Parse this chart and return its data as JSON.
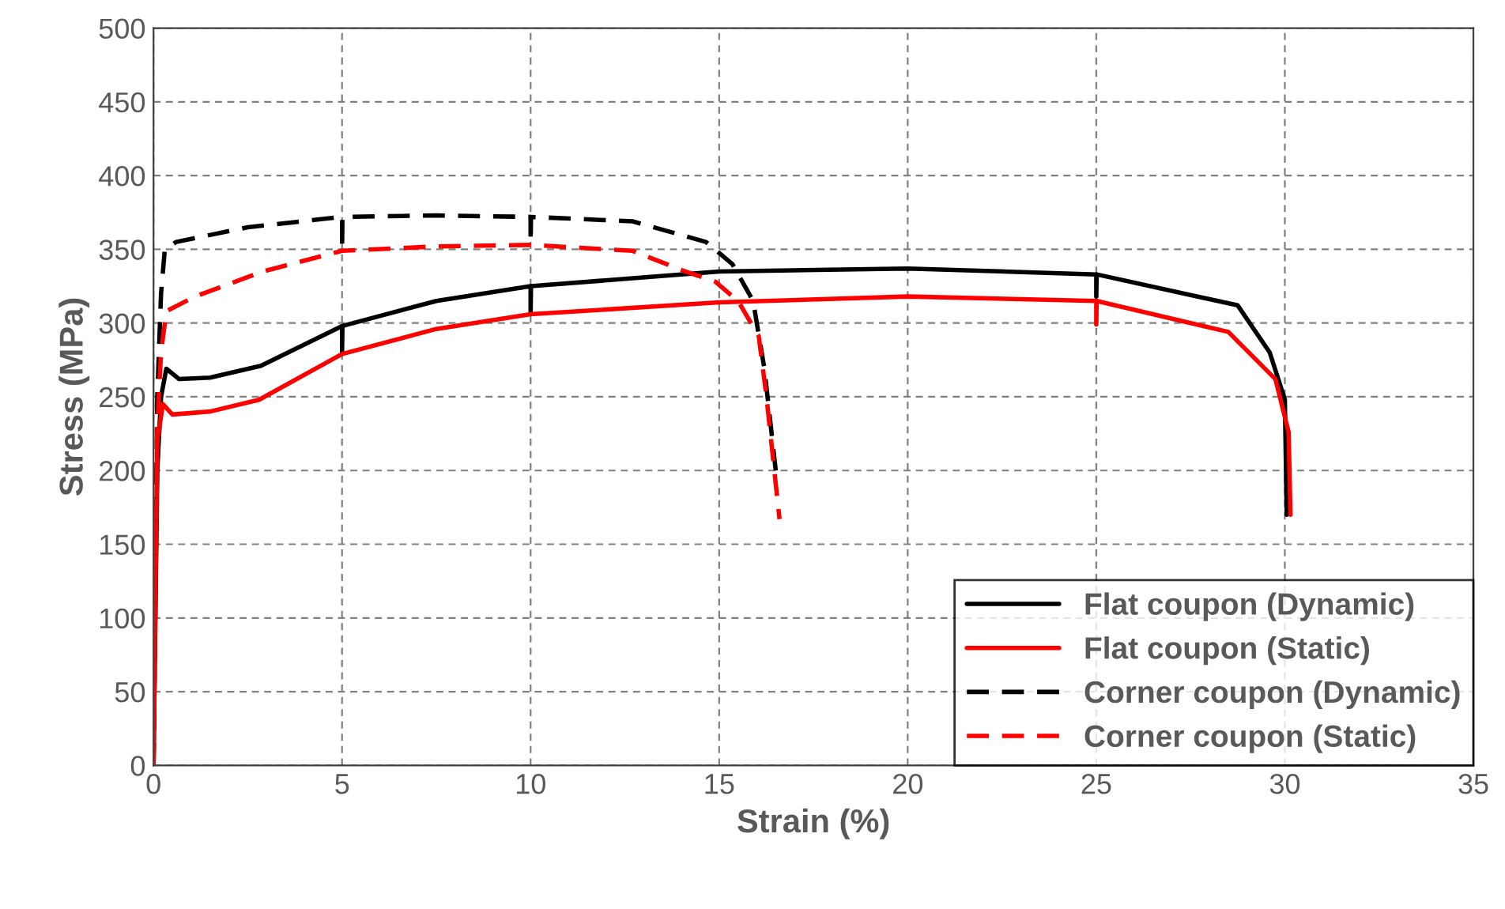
{
  "chart_data": {
    "type": "line",
    "xlabel": "Strain (%)",
    "ylabel": "Stress (MPa)",
    "xlim": [
      0,
      35
    ],
    "ylim": [
      0,
      500
    ],
    "xticks": [
      0,
      5,
      10,
      15,
      20,
      25,
      30,
      35
    ],
    "yticks": [
      0,
      50,
      100,
      150,
      200,
      250,
      300,
      350,
      400,
      450,
      500
    ],
    "grid": true,
    "legend": "bottom right",
    "marker": "none",
    "series": [
      {
        "name": "Flat coupon (Dynamic)",
        "color": "#000000",
        "line_style": "solid",
        "x": [
          0,
          0.1,
          0.2,
          0.34,
          0.68,
          1.5,
          2.85,
          5.0,
          5.0,
          5.01,
          7.5,
          10.0,
          10.0,
          10.01,
          15,
          20,
          25,
          25,
          25.01,
          28.75,
          29.6,
          30.0,
          30.05
        ],
        "values": [
          0,
          200,
          250,
          269,
          262,
          263,
          271,
          298,
          280,
          298,
          315,
          325,
          307,
          325,
          335,
          337,
          333,
          318,
          333,
          312,
          280,
          248,
          170
        ]
      },
      {
        "name": "Flat coupon (Static)",
        "color": "#ff0000",
        "line_style": "solid",
        "x": [
          0,
          0.1,
          0.25,
          0.5,
          1.5,
          2.8,
          5,
          7.5,
          10,
          15,
          20,
          25,
          25,
          25.01,
          28.5,
          29.75,
          30.1,
          30.15
        ],
        "values": [
          0,
          220,
          245,
          238,
          240,
          248,
          279,
          296,
          306,
          314,
          318,
          315,
          299,
          315,
          294,
          262,
          226,
          170
        ]
      },
      {
        "name": "Corner coupon (Dynamic)",
        "color": "#000000",
        "line_style": "dashed",
        "x": [
          0,
          0.1,
          0.2,
          0.3,
          0.6,
          2.5,
          5,
          5,
          5.01,
          7.5,
          10,
          10,
          10.01,
          12.7,
          14.65,
          15.35,
          15.9,
          16.2,
          16.5
        ],
        "values": [
          0,
          250,
          320,
          350,
          355,
          365,
          372,
          350,
          372,
          373,
          372,
          355,
          372,
          369,
          355,
          340,
          315,
          269,
          200
        ]
      },
      {
        "name": "Corner coupon (Static)",
        "color": "#ff0000",
        "line_style": "dashed",
        "x": [
          0,
          0.1,
          0.2,
          0.34,
          1.1,
          2.9,
          5,
          7.5,
          10,
          12.7,
          14.1,
          14.9,
          15.5,
          16.05,
          16.25,
          16.6
        ],
        "values": [
          0,
          230,
          280,
          308,
          318,
          335,
          349,
          352,
          353,
          349,
          335,
          328,
          315,
          291,
          251,
          167
        ]
      }
    ]
  }
}
